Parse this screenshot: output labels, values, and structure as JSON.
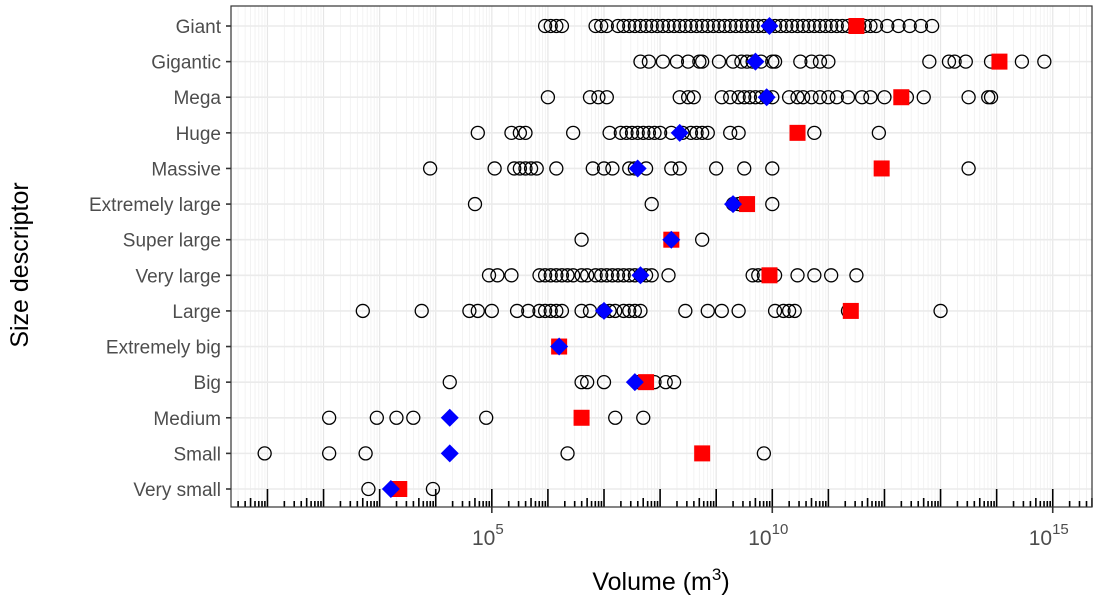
{
  "chart_data": {
    "type": "scatter",
    "title": "",
    "xlabel": "Volume (m",
    "xlabel_superscript": "3",
    "xlabel_suffix": ")",
    "ylabel": "Size descriptor",
    "xscale": "log10",
    "xlim_log10": [
      0.35,
      15.7
    ],
    "xticks": [
      {
        "log10": 5,
        "base": "10",
        "exp": "5"
      },
      {
        "log10": 10,
        "base": "10",
        "exp": "10"
      },
      {
        "log10": 15,
        "base": "10",
        "exp": "15"
      }
    ],
    "grid": true,
    "rug": true,
    "legend": "none",
    "marker_legend": {
      "observations": "open black circle",
      "median": "blue diamond",
      "mean": "red square"
    },
    "colors": {
      "median": "#0000ff",
      "mean": "#ff0000",
      "points": "#000000",
      "grid": "#ebebeb"
    },
    "categories": [
      "Very small",
      "Small",
      "Medium",
      "Big",
      "Extremely big",
      "Large",
      "Very large",
      "Super large",
      "Extremely large",
      "Massive",
      "Huge",
      "Mega",
      "Gigantic",
      "Giant"
    ],
    "series": [
      {
        "name": "Very small",
        "points_log10": [
          2.8,
          3.95
        ],
        "median_log10": 3.2,
        "mean_log10": 3.35
      },
      {
        "name": "Small",
        "points_log10": [
          0.95,
          2.1,
          2.75,
          6.35,
          9.85
        ],
        "median_log10": 4.25,
        "mean_log10": 8.75
      },
      {
        "name": "Medium",
        "points_log10": [
          2.1,
          2.95,
          3.3,
          3.6,
          4.9,
          7.2,
          7.7
        ],
        "median_log10": 4.25,
        "mean_log10": 6.6
      },
      {
        "name": "Extremely big",
        "points_log10": [],
        "median_log10": 6.2,
        "mean_log10": 6.2
      },
      {
        "name": "Big",
        "points_log10": [
          4.25,
          6.6,
          6.7,
          7.0,
          7.6,
          7.75,
          7.9,
          8.1,
          8.25
        ],
        "median_log10": 7.55,
        "mean_log10": 7.75
      },
      {
        "name": "Large",
        "points_log10": [
          2.7,
          3.75,
          4.6,
          4.75,
          5.0,
          5.45,
          5.65,
          5.85,
          5.95,
          6.05,
          6.15,
          6.25,
          6.6,
          6.75,
          7.0,
          7.1,
          7.2,
          7.35,
          7.45,
          7.55,
          7.65,
          8.45,
          8.85,
          9.1,
          9.4,
          10.05,
          10.2,
          10.3,
          10.4,
          11.35,
          13.0
        ],
        "median_log10": 7.0,
        "mean_log10": 11.4
      },
      {
        "name": "Very large",
        "points_log10": [
          4.95,
          5.1,
          5.35,
          5.85,
          5.95,
          6.05,
          6.15,
          6.25,
          6.35,
          6.45,
          6.6,
          6.7,
          6.85,
          6.95,
          7.05,
          7.15,
          7.25,
          7.35,
          7.45,
          7.55,
          7.65,
          7.75,
          7.85,
          8.15,
          9.65,
          9.75,
          9.85,
          9.95,
          10.05,
          10.45,
          10.75,
          11.05,
          11.5
        ],
        "median_log10": 7.65,
        "mean_log10": 9.95
      },
      {
        "name": "Super large",
        "points_log10": [
          6.6,
          8.75
        ],
        "median_log10": 8.2,
        "mean_log10": 8.2
      },
      {
        "name": "Extremely large",
        "points_log10": [
          4.7,
          7.85,
          9.3,
          9.4,
          10.0
        ],
        "median_log10": 9.3,
        "mean_log10": 9.55
      },
      {
        "name": "Massive",
        "points_log10": [
          3.9,
          5.05,
          5.4,
          5.5,
          5.6,
          5.7,
          5.8,
          6.15,
          6.8,
          7.0,
          7.15,
          7.45,
          7.55,
          7.75,
          8.2,
          8.35,
          9.0,
          9.5,
          10.0,
          13.5
        ],
        "median_log10": 7.6,
        "mean_log10": 11.95
      },
      {
        "name": "Huge",
        "points_log10": [
          4.75,
          5.35,
          5.5,
          5.6,
          6.45,
          7.1,
          7.3,
          7.4,
          7.5,
          7.6,
          7.7,
          7.8,
          7.9,
          8.0,
          8.2,
          8.4,
          8.55,
          8.65,
          8.75,
          8.85,
          9.25,
          9.4,
          10.75,
          11.9
        ],
        "median_log10": 8.35,
        "mean_log10": 10.45
      },
      {
        "name": "Mega",
        "points_log10": [
          6.0,
          6.75,
          6.9,
          7.05,
          8.35,
          8.5,
          8.6,
          9.1,
          9.25,
          9.4,
          9.5,
          9.6,
          9.7,
          9.8,
          9.9,
          10.0,
          10.3,
          10.45,
          10.55,
          10.7,
          10.85,
          11.0,
          11.15,
          11.35,
          11.6,
          11.75,
          12.0,
          12.4,
          12.7,
          13.5,
          13.85,
          13.9
        ],
        "median_log10": 9.9,
        "mean_log10": 12.3
      },
      {
        "name": "Gigantic",
        "points_log10": [
          7.65,
          7.8,
          8.05,
          8.3,
          8.5,
          8.7,
          8.75,
          9.05,
          9.3,
          9.45,
          9.55,
          9.65,
          9.8,
          10.0,
          10.05,
          10.5,
          10.7,
          10.85,
          11.0,
          12.8,
          13.15,
          13.25,
          13.45,
          13.9,
          14.05,
          14.45,
          14.85
        ],
        "median_log10": 9.7,
        "mean_log10": 14.05
      },
      {
        "name": "Giant",
        "points_log10": [
          5.95,
          6.05,
          6.15,
          6.25,
          6.85,
          6.95,
          7.05,
          7.25,
          7.35,
          7.45,
          7.55,
          7.65,
          7.75,
          7.85,
          7.95,
          8.05,
          8.15,
          8.25,
          8.35,
          8.45,
          8.55,
          8.65,
          8.75,
          8.85,
          8.95,
          9.05,
          9.15,
          9.25,
          9.35,
          9.45,
          9.55,
          9.65,
          9.75,
          9.85,
          9.95,
          10.05,
          10.15,
          10.25,
          10.35,
          10.45,
          10.55,
          10.65,
          10.75,
          10.85,
          10.95,
          11.05,
          11.15,
          11.25,
          11.35,
          11.55,
          11.65,
          11.75,
          11.85,
          12.05,
          12.25,
          12.45,
          12.65,
          12.85
        ],
        "median_log10": 9.95,
        "mean_log10": 11.5
      }
    ]
  }
}
